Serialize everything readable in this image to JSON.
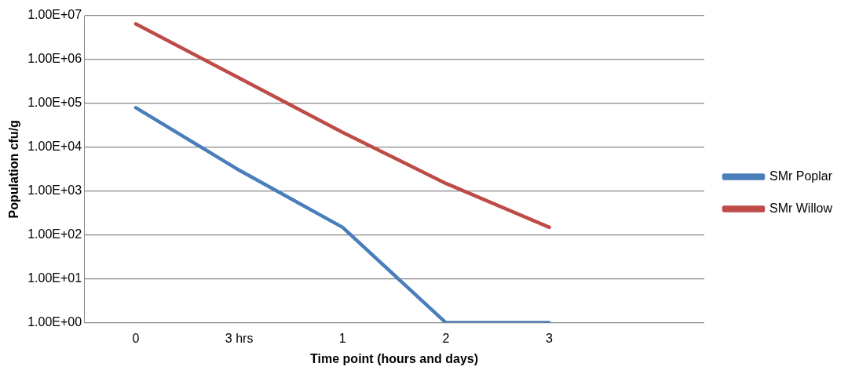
{
  "chart_data": {
    "type": "line",
    "xlabel": "Time point (hours and days)",
    "ylabel": "Population cfu/g",
    "categories": [
      "0",
      "3 hrs",
      "1",
      "2",
      "3",
      null
    ],
    "series": [
      {
        "name": "SMr Poplar",
        "color": "#4a7ebb",
        "values": [
          80000,
          3000,
          150,
          1,
          1,
          null
        ]
      },
      {
        "name": "SMr Willow",
        "color": "#be4b48",
        "values": [
          6500000,
          380000,
          22000,
          1500,
          150,
          null
        ]
      }
    ],
    "log": "y",
    "ylim": [
      1,
      10000000
    ],
    "yticks": [
      {
        "value": 1,
        "label": "1.00E+00"
      },
      {
        "value": 10,
        "label": "1.00E+01"
      },
      {
        "value": 100,
        "label": "1.00E+02"
      },
      {
        "value": 1000,
        "label": "1.00E+03"
      },
      {
        "value": 10000,
        "label": "1.00E+04"
      },
      {
        "value": 100000,
        "label": "1.00E+05"
      },
      {
        "value": 1000000,
        "label": "1.00E+06"
      },
      {
        "value": 10000000,
        "label": "1.00E+07"
      }
    ],
    "grid": "y",
    "legend": "right",
    "marker": "none",
    "line_style": "solid"
  }
}
